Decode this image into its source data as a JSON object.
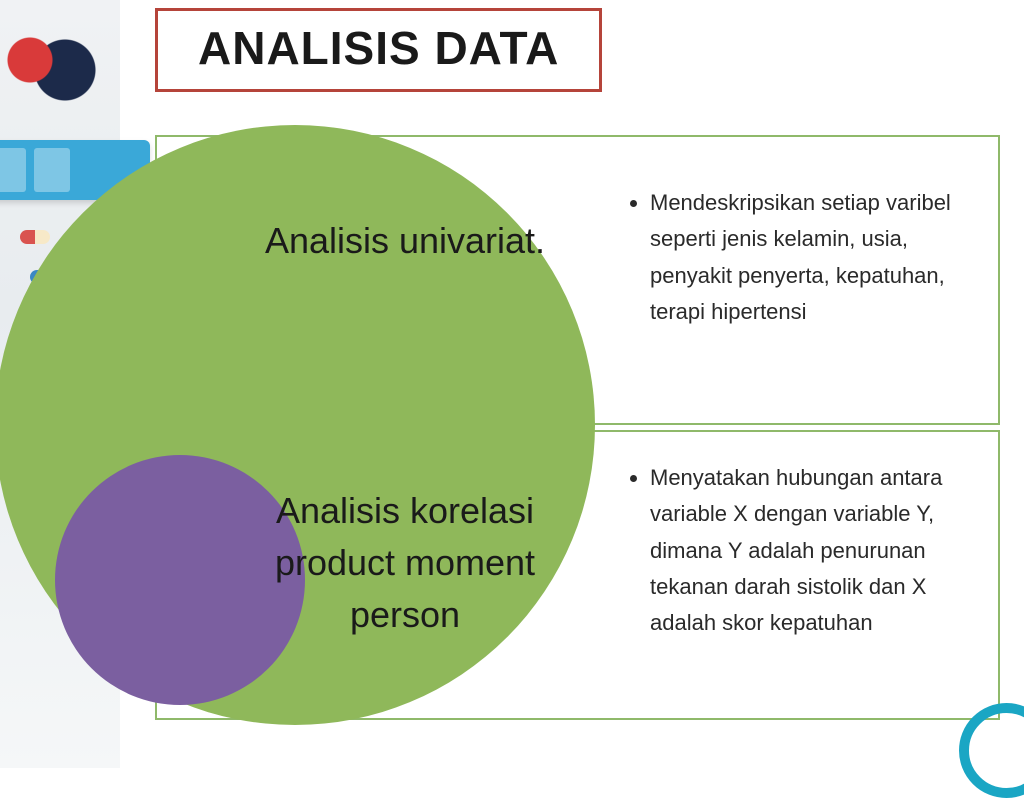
{
  "title": "ANALISIS DATA",
  "title_border_color": "#b5443a",
  "box_border_color": "#8fb96a",
  "big_circle_color": "#8fb85a",
  "small_circle_color": "#7b5fa0",
  "ring_color": "#1aa6c4",
  "rows": [
    {
      "label": "Analisis univariat.",
      "desc": "Mendeskripsikan setiap varibel seperti jenis kelamin, usia, penyakit penyerta, kepatuhan, terapi hipertensi"
    },
    {
      "label": "Analisis korelasi product moment person",
      "desc": "Menyatakan hubungan antara variable X dengan variable Y, dimana Y adalah penurunan tekanan darah sistolik dan X adalah skor kepatuhan"
    }
  ]
}
